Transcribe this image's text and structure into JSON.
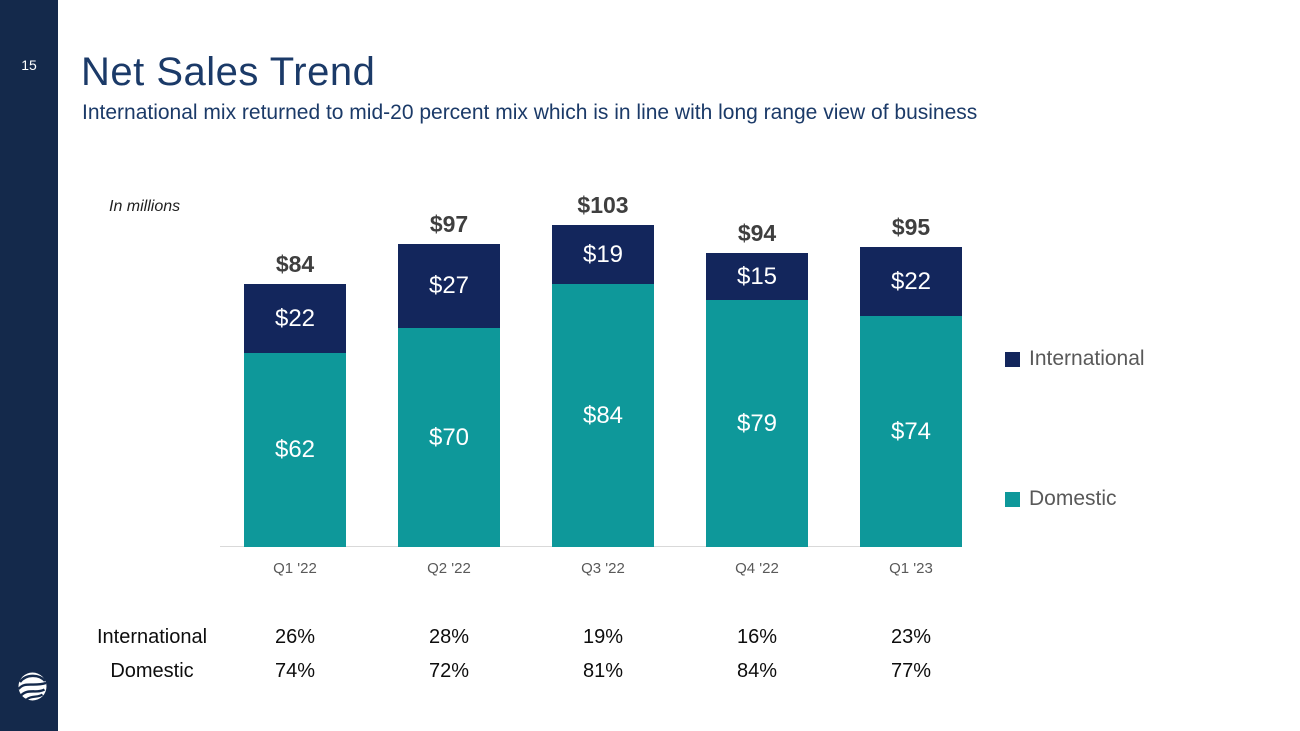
{
  "slide": {
    "page_number": "15"
  },
  "header": {
    "title": "Net Sales Trend",
    "subtitle": "International mix returned to mid-20 percent mix which is in line with long range view of business"
  },
  "chart_note": "In millions",
  "legend": [
    {
      "name": "International",
      "color": "#13265C"
    },
    {
      "name": "Domestic",
      "color": "#0E989A"
    }
  ],
  "colors": {
    "sidebar": "#14294B",
    "international": "#13265C",
    "domestic": "#0E989A",
    "title_text": "#1B3A68",
    "axis_text": "#595959",
    "total_text": "#3F3F3F"
  },
  "chart_data": {
    "type": "bar",
    "stacked": true,
    "title": "Net Sales Trend",
    "note": "In millions",
    "categories": [
      "Q1 '22",
      "Q2 '22",
      "Q3 '22",
      "Q4 '22",
      "Q1 '23"
    ],
    "series": [
      {
        "name": "Domestic",
        "color": "#0E989A",
        "values": [
          62,
          70,
          84,
          79,
          74
        ]
      },
      {
        "name": "International",
        "color": "#13265C",
        "values": [
          22,
          27,
          19,
          15,
          22
        ]
      }
    ],
    "totals": [
      84,
      97,
      103,
      94,
      95
    ],
    "value_prefix": "$",
    "ylim": [
      0,
      103
    ],
    "grid": false,
    "legend_position": "right"
  },
  "mix_table": {
    "rows": [
      {
        "label": "International",
        "values": [
          "26%",
          "28%",
          "19%",
          "16%",
          "23%"
        ]
      },
      {
        "label": "Domestic",
        "values": [
          "74%",
          "72%",
          "81%",
          "84%",
          "77%"
        ]
      }
    ]
  }
}
